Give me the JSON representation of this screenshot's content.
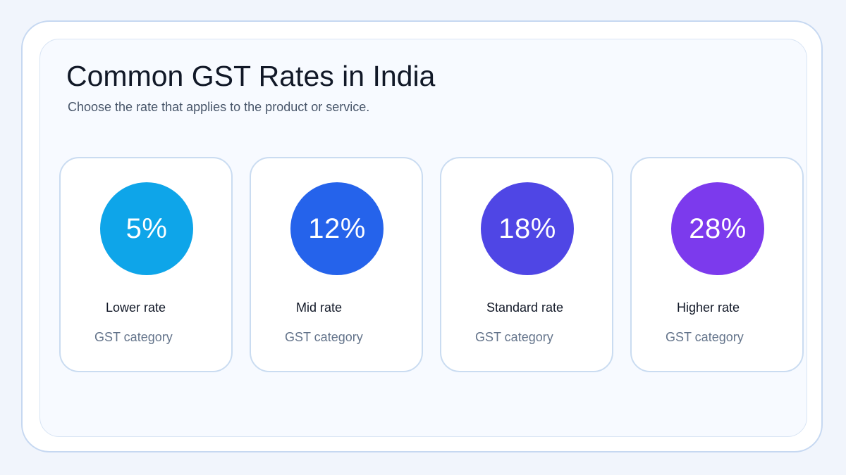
{
  "header": {
    "title": "Common GST Rates in India",
    "subtitle": "Choose the rate that applies to the product or service."
  },
  "rates": [
    {
      "value": "5%",
      "label": "Lower rate",
      "category": "GST category",
      "color": "#0ea5e9"
    },
    {
      "value": "12%",
      "label": "Mid rate",
      "category": "GST category",
      "color": "#2563eb"
    },
    {
      "value": "18%",
      "label": "Standard rate",
      "category": "GST category",
      "color": "#4f46e5"
    },
    {
      "value": "28%",
      "label": "Higher rate",
      "category": "GST category",
      "color": "#7c3aed"
    }
  ]
}
